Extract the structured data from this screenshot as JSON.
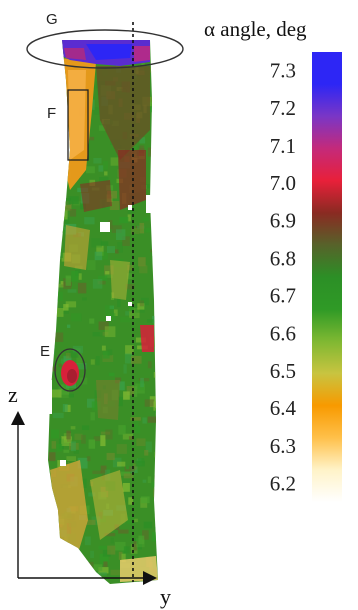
{
  "chart_data": {
    "type": "heatmap",
    "title": "",
    "colorbar": {
      "title": "α angle, deg",
      "ticks": [
        7.3,
        7.2,
        7.1,
        7.0,
        6.9,
        6.8,
        6.7,
        6.6,
        6.5,
        6.4,
        6.3,
        6.2
      ],
      "tick_labels": [
        "7.3",
        "7.2",
        "7.1",
        "7.0",
        "6.9",
        "6.8",
        "6.7",
        "6.6",
        "6.5",
        "6.4",
        "6.3",
        "6.2"
      ],
      "range": [
        6.15,
        7.35
      ],
      "colors": [
        "#ffffff",
        "#fff3c8",
        "#ffc04a",
        "#f89a00",
        "#c8c440",
        "#7fb832",
        "#2f9a26",
        "#2c8f26",
        "#57622a",
        "#8a2a22",
        "#e8203a",
        "#c42a7a",
        "#7a36c6",
        "#2d26f5",
        "#2d26f5"
      ],
      "placement": "right"
    },
    "axes": {
      "z_label": "z",
      "y_label": "y"
    },
    "regions": [
      {
        "label": "G",
        "value": 7.3
      },
      {
        "label": "F",
        "value": 6.4
      },
      {
        "label": "E",
        "value": 7.05
      }
    ],
    "dominant_value": 6.75,
    "grid": false
  }
}
